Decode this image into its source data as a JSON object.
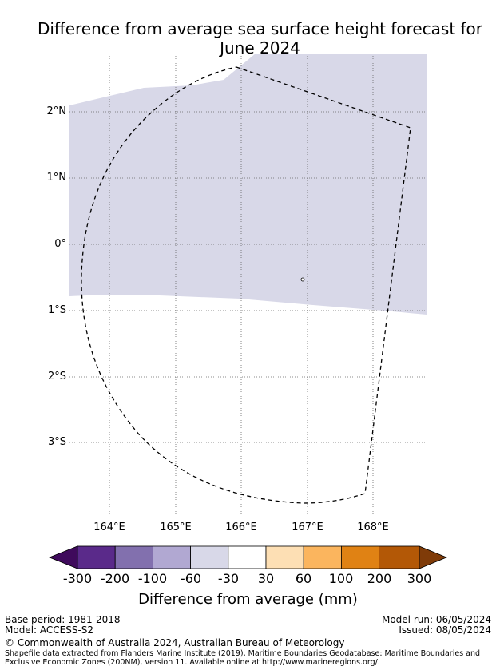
{
  "title_line1": "Difference from average sea surface height forecast for",
  "title_line2": "June 2024",
  "map": {
    "lat_labels": [
      "2°N",
      "1°N",
      "0°",
      "1°S",
      "2°S",
      "3°S"
    ],
    "lon_labels": [
      "164°E",
      "165°E",
      "166°E",
      "167°E",
      "168°E"
    ],
    "gridlines": true,
    "land_color": "#ffffff",
    "anomaly_region_color": "#d8d8e8",
    "boundary_style": "dashed"
  },
  "colorbar": {
    "tick_labels": [
      "-300",
      "-200",
      "-100",
      "-60",
      "-30",
      "30",
      "60",
      "100",
      "200",
      "300"
    ],
    "colors": [
      "#3f0a5c",
      "#5a2a8a",
      "#8270ae",
      "#b1a8d2",
      "#d8d8e8",
      "#ffffff",
      "#fddfb4",
      "#fbb55e",
      "#e08214",
      "#b35806",
      "#7f3b08"
    ],
    "label": "Difference from average (mm)"
  },
  "footer": {
    "base_period": "Base period: 1981-2018",
    "model": "Model: ACCESS-S2",
    "model_run": "Model run: 06/05/2024",
    "issued": "Issued: 08/05/2024",
    "copyright": "© Commonwealth of Australia 2024, Australian Bureau of Meteorology",
    "shapefile_note": "Shapefile data extracted from Flanders Marine Institute (2019), Maritime Boundaries Geodatabase: Maritime Boundaries and Exclusive Economic Zones (200NM), version 11. Available online at http://www.marineregions.org/."
  }
}
